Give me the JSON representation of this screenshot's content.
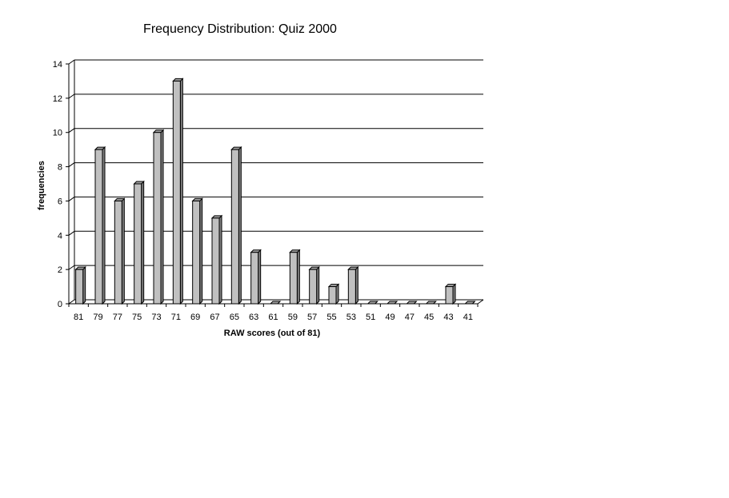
{
  "chart_data": {
    "type": "bar",
    "title": "Frequency Distribution: Quiz 2000",
    "xlabel": "RAW scores (out of 81)",
    "ylabel": "frequencies",
    "ylim": [
      0,
      14
    ],
    "yticks": [
      0,
      2,
      4,
      6,
      8,
      10,
      12,
      14
    ],
    "grid": true,
    "legend": "none",
    "bar_color": "#c0c0c0",
    "categories": [
      "81",
      "79",
      "77",
      "75",
      "73",
      "71",
      "69",
      "67",
      "65",
      "63",
      "61",
      "59",
      "57",
      "55",
      "53",
      "51",
      "49",
      "47",
      "45",
      "43",
      "41"
    ],
    "values": [
      2,
      9,
      6,
      7,
      10,
      13,
      6,
      5,
      9,
      3,
      0,
      3,
      2,
      1,
      2,
      0,
      0,
      0,
      0,
      1,
      0
    ]
  }
}
